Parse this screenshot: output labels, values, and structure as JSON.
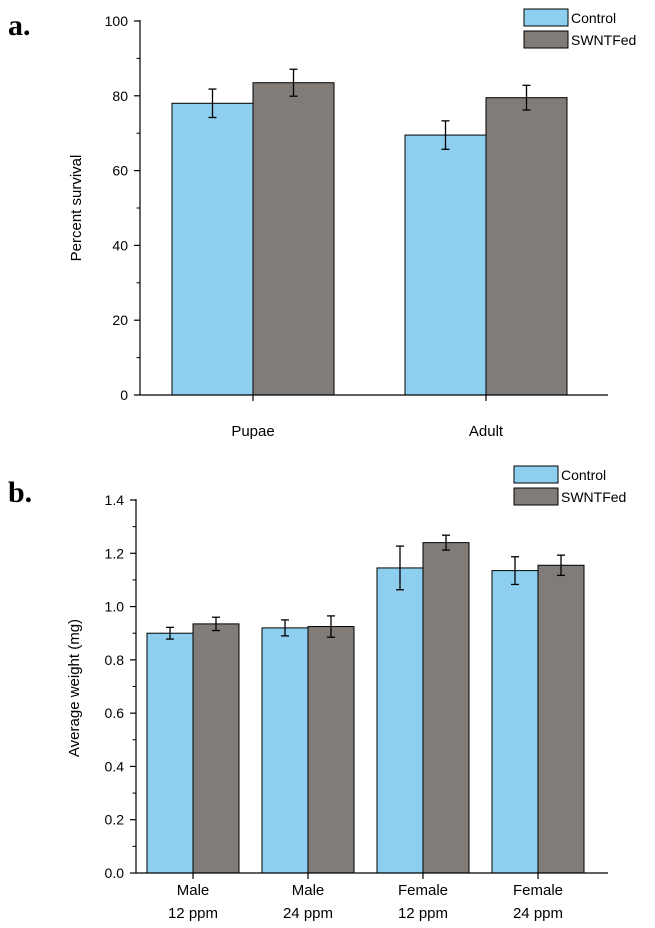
{
  "colors": {
    "control": "#8ecff0",
    "swnt": "#817c78",
    "axis": "#000000"
  },
  "legend": [
    {
      "name": "Control",
      "color": "#8ecff0"
    },
    {
      "name": "SWNTFed",
      "color": "#817c78"
    }
  ],
  "chart_data": [
    {
      "panel": "a.",
      "type": "bar",
      "ylabel": "Percent survival",
      "ylim": [
        0,
        100
      ],
      "yticks": [
        "0",
        "20",
        "40",
        "60",
        "80",
        "100"
      ],
      "yticks_values": [
        0,
        20,
        40,
        60,
        80,
        100
      ],
      "minor_ticks": true,
      "categories": [
        [
          "Pupae"
        ],
        [
          "Adult"
        ]
      ],
      "series": [
        {
          "name": "Control",
          "values": [
            78,
            69.5
          ],
          "errors": [
            3.8,
            3.8
          ]
        },
        {
          "name": "SWNTFed",
          "values": [
            83.5,
            79.5
          ],
          "errors": [
            3.6,
            3.3
          ]
        }
      ],
      "legend_position": "top-right",
      "grid": false
    },
    {
      "panel": "b.",
      "type": "bar",
      "ylabel": "Average  weight (mg)",
      "ylim": [
        0,
        1.4
      ],
      "yticks": [
        "0.0",
        "0.2",
        "0.4",
        "0.6",
        "0.8",
        "1.0",
        "1.2",
        "1.4"
      ],
      "yticks_values": [
        0,
        0.2,
        0.4,
        0.6,
        0.8,
        1.0,
        1.2,
        1.4
      ],
      "minor_ticks": true,
      "categories": [
        [
          "Male",
          "12 ppm"
        ],
        [
          "Male",
          "24 ppm"
        ],
        [
          "Female",
          "12 ppm"
        ],
        [
          "Female",
          "24 ppm"
        ]
      ],
      "series": [
        {
          "name": "Control",
          "values": [
            0.9,
            0.92,
            1.145,
            1.135
          ],
          "errors": [
            0.022,
            0.03,
            0.082,
            0.052
          ]
        },
        {
          "name": "SWNTFed",
          "values": [
            0.935,
            0.925,
            1.24,
            1.155
          ],
          "errors": [
            0.025,
            0.04,
            0.028,
            0.038
          ]
        }
      ],
      "legend_position": "top-right",
      "grid": false
    }
  ]
}
